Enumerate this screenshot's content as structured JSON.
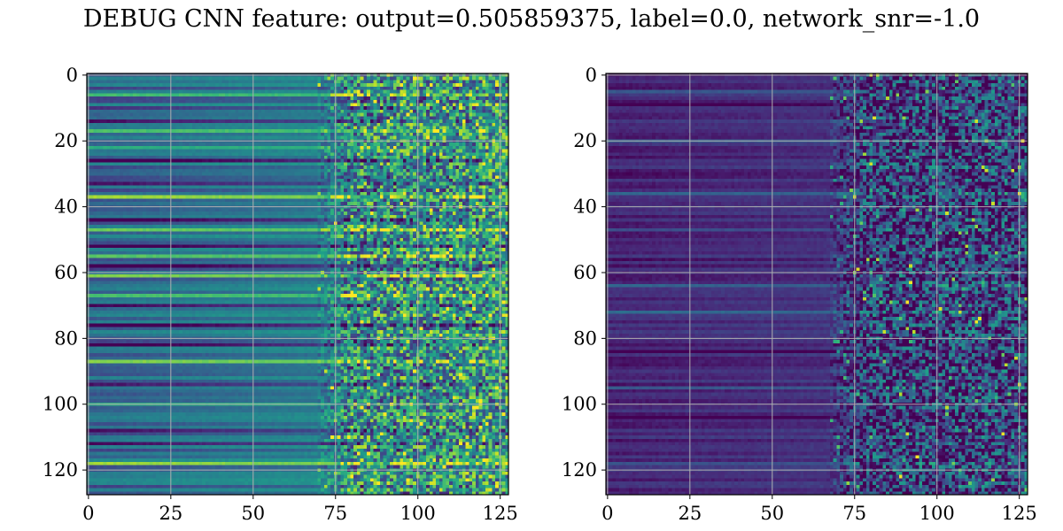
{
  "figure": {
    "title": "DEBUG CNN feature: output=0.505859375, label=0.0, network_snr=-1.0"
  },
  "chart_data": [
    {
      "type": "heatmap",
      "panel": "left",
      "colormap": "viridis",
      "rows": 128,
      "cols": 128,
      "xlim": [
        -0.5,
        127.5
      ],
      "ylim": [
        127.5,
        -0.5
      ],
      "x_ticks": [
        0,
        25,
        50,
        75,
        100,
        125
      ],
      "y_ticks": [
        0,
        20,
        40,
        60,
        80,
        100,
        120
      ],
      "x_tick_labels": [
        "0",
        "25",
        "50",
        "75",
        "100",
        "125"
      ],
      "y_tick_labels": [
        "0",
        "20",
        "40",
        "60",
        "80",
        "100",
        "120"
      ],
      "grid": true,
      "seed": 7,
      "left_level": 0.32,
      "right_level": 0.5,
      "row_variation": 0.3,
      "noise_start_col": 70,
      "noise_amount": 0.55,
      "bright_rows": [
        6,
        17,
        22,
        37,
        47,
        55,
        61,
        67,
        87,
        100,
        118
      ],
      "dark_rows": [
        10,
        14,
        26,
        33,
        44,
        52,
        58,
        70,
        76,
        82,
        94,
        108,
        112
      ]
    },
    {
      "type": "heatmap",
      "panel": "right",
      "colormap": "viridis",
      "rows": 128,
      "cols": 128,
      "xlim": [
        -0.5,
        127.5
      ],
      "ylim": [
        127.5,
        -0.5
      ],
      "x_ticks": [
        0,
        25,
        50,
        75,
        100,
        125
      ],
      "y_ticks": [
        0,
        20,
        40,
        60,
        80,
        100,
        120
      ],
      "x_tick_labels": [
        "0",
        "25",
        "50",
        "75",
        "100",
        "125"
      ],
      "y_tick_labels": [
        "0",
        "20",
        "40",
        "60",
        "80",
        "100",
        "120"
      ],
      "grid": true,
      "seed": 13,
      "left_level": 0.1,
      "right_level": 0.18,
      "row_variation": 0.14,
      "noise_start_col": 68,
      "noise_amount": 0.5,
      "bright_rows": [
        5,
        20,
        36,
        47,
        64,
        72,
        95,
        118
      ],
      "dark_rows": [
        9,
        30,
        56,
        84,
        104
      ]
    }
  ]
}
